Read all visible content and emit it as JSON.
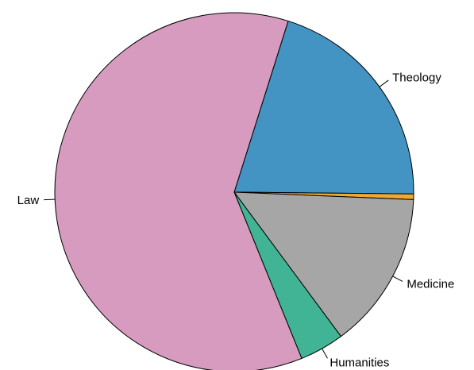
{
  "chart_data": {
    "type": "pie",
    "title": "",
    "slices": [
      {
        "label": "Theology",
        "value": 20.3,
        "color": "#4393C3"
      },
      {
        "label": "",
        "value": 0.5,
        "color": "#F0A830"
      },
      {
        "label": "Medicine",
        "value": 14.2,
        "color": "#A6A6A6"
      },
      {
        "label": "Humanities",
        "value": 4.0,
        "color": "#41B496"
      },
      {
        "label": "Law",
        "value": 61.0,
        "color": "#D69BBE"
      }
    ],
    "direction": "clockwise",
    "start": "upper-right",
    "legend": "none"
  }
}
